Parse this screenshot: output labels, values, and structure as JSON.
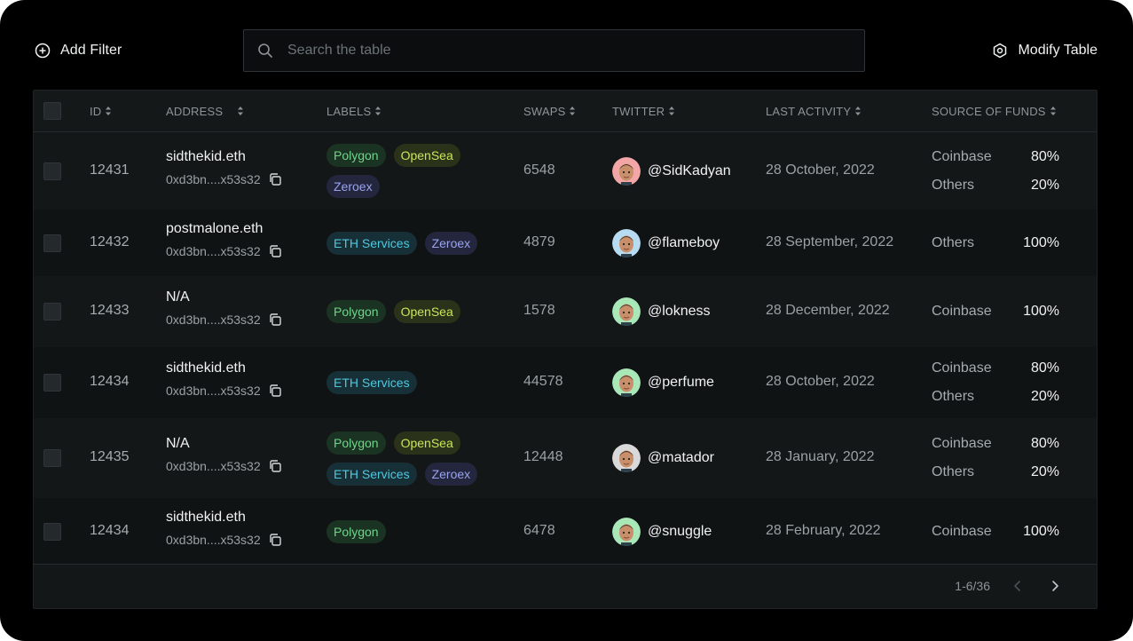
{
  "toolbar": {
    "add_filter_label": "Add Filter",
    "search_placeholder": "Search the table",
    "modify_table_label": "Modify Table"
  },
  "table": {
    "columns": [
      "ID",
      "ADDRESS",
      "LABELS",
      "SWAPS",
      "TWITTER",
      "LAST ACTIVITY",
      "SOURCE OF FUNDS"
    ],
    "rows": [
      {
        "id": "12431",
        "name": "sidthekid.eth",
        "address": "0xd3bn....x53s32",
        "labels": [
          "Polygon",
          "OpenSea",
          "Zeroex"
        ],
        "swaps": "6548",
        "twitter": "@SidKadyan",
        "last_activity": "28 October, 2022",
        "funds": [
          {
            "source": "Coinbase",
            "percent": "80%"
          },
          {
            "source": "Others",
            "percent": "20%"
          }
        ]
      },
      {
        "id": "12432",
        "name": "postmalone.eth",
        "address": "0xd3bn....x53s32",
        "labels": [
          "ETH Services",
          "Zeroex"
        ],
        "swaps": "4879",
        "twitter": "@flameboy",
        "last_activity": "28 September, 2022",
        "funds": [
          {
            "source": "Others",
            "percent": "100%"
          }
        ]
      },
      {
        "id": "12433",
        "name": "N/A",
        "address": "0xd3bn....x53s32",
        "labels": [
          "Polygon",
          "OpenSea"
        ],
        "swaps": "1578",
        "twitter": "@lokness",
        "last_activity": "28 December, 2022",
        "funds": [
          {
            "source": "Coinbase",
            "percent": "100%"
          }
        ]
      },
      {
        "id": "12434",
        "name": "sidthekid.eth",
        "address": "0xd3bn....x53s32",
        "labels": [
          "ETH Services"
        ],
        "swaps": "44578",
        "twitter": "@perfume",
        "last_activity": "28 October, 2022",
        "funds": [
          {
            "source": "Coinbase",
            "percent": "80%"
          },
          {
            "source": "Others",
            "percent": "20%"
          }
        ]
      },
      {
        "id": "12435",
        "name": "N/A",
        "address": "0xd3bn....x53s32",
        "labels": [
          "Polygon",
          "OpenSea",
          "ETH Services",
          "Zeroex"
        ],
        "swaps": "12448",
        "twitter": "@matador",
        "last_activity": "28 January, 2022",
        "funds": [
          {
            "source": "Coinbase",
            "percent": "80%"
          },
          {
            "source": "Others",
            "percent": "20%"
          }
        ]
      },
      {
        "id": "12434",
        "name": "sidthekid.eth",
        "address": "0xd3bn....x53s32",
        "labels": [
          "Polygon"
        ],
        "swaps": "6478",
        "twitter": "@snuggle",
        "last_activity": "28 February, 2022",
        "funds": [
          {
            "source": "Coinbase",
            "percent": "100%"
          }
        ]
      }
    ]
  },
  "tag_colors": {
    "Polygon": {
      "bg": "#1b3322",
      "fg": "#6fd58a"
    },
    "OpenSea": {
      "bg": "#2a3219",
      "fg": "#c8e65a"
    },
    "Zeroex": {
      "bg": "#23263d",
      "fg": "#9aa3f0"
    },
    "ETH Services": {
      "bg": "#173037",
      "fg": "#4fc7df"
    }
  },
  "avatar_colors": [
    "#f2a6a6",
    "#b7dcf2",
    "#a9e6b8",
    "#a9e6b8",
    "#d9d9d9",
    "#a9e6b8"
  ],
  "pagination": {
    "range": "1-6/36"
  }
}
